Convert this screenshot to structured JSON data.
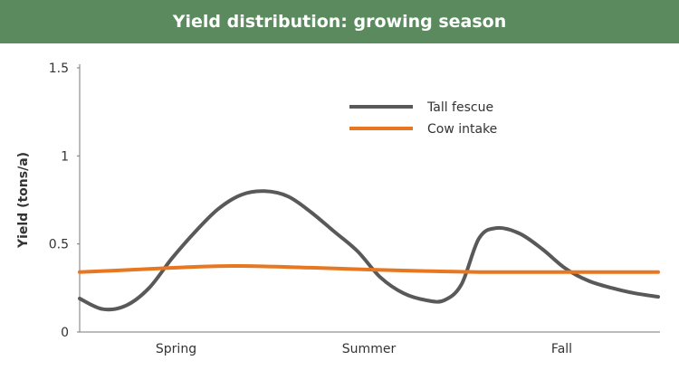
{
  "header": {
    "title": "Yield distribution: growing season"
  },
  "chart_data": {
    "type": "line",
    "title": "Yield distribution: growing season",
    "xlabel": "",
    "ylabel": "Yield (tons/a)",
    "x_categories": [
      "Spring",
      "Summer",
      "Fall"
    ],
    "yticks": [
      0,
      0.5,
      1,
      1.5
    ],
    "ylim": [
      0,
      1.5
    ],
    "grid": false,
    "legend_position": "top-right",
    "series": [
      {
        "name": "Tall fescue",
        "color": "#595959",
        "points": [
          [
            0.0,
            0.19
          ],
          [
            0.04,
            0.13
          ],
          [
            0.08,
            0.15
          ],
          [
            0.12,
            0.25
          ],
          [
            0.16,
            0.42
          ],
          [
            0.2,
            0.57
          ],
          [
            0.24,
            0.7
          ],
          [
            0.28,
            0.78
          ],
          [
            0.32,
            0.8
          ],
          [
            0.36,
            0.77
          ],
          [
            0.4,
            0.68
          ],
          [
            0.44,
            0.57
          ],
          [
            0.48,
            0.46
          ],
          [
            0.52,
            0.31
          ],
          [
            0.56,
            0.22
          ],
          [
            0.6,
            0.18
          ],
          [
            0.63,
            0.18
          ],
          [
            0.66,
            0.27
          ],
          [
            0.69,
            0.53
          ],
          [
            0.72,
            0.59
          ],
          [
            0.76,
            0.56
          ],
          [
            0.8,
            0.47
          ],
          [
            0.84,
            0.36
          ],
          [
            0.88,
            0.29
          ],
          [
            0.92,
            0.25
          ],
          [
            0.96,
            0.22
          ],
          [
            1.0,
            0.2
          ]
        ]
      },
      {
        "name": "Cow intake",
        "color": "#e87722",
        "points": [
          [
            0.0,
            0.34
          ],
          [
            0.1,
            0.355
          ],
          [
            0.2,
            0.37
          ],
          [
            0.28,
            0.375
          ],
          [
            0.4,
            0.365
          ],
          [
            0.55,
            0.35
          ],
          [
            0.7,
            0.34
          ],
          [
            0.85,
            0.34
          ],
          [
            1.0,
            0.34
          ]
        ]
      }
    ]
  }
}
